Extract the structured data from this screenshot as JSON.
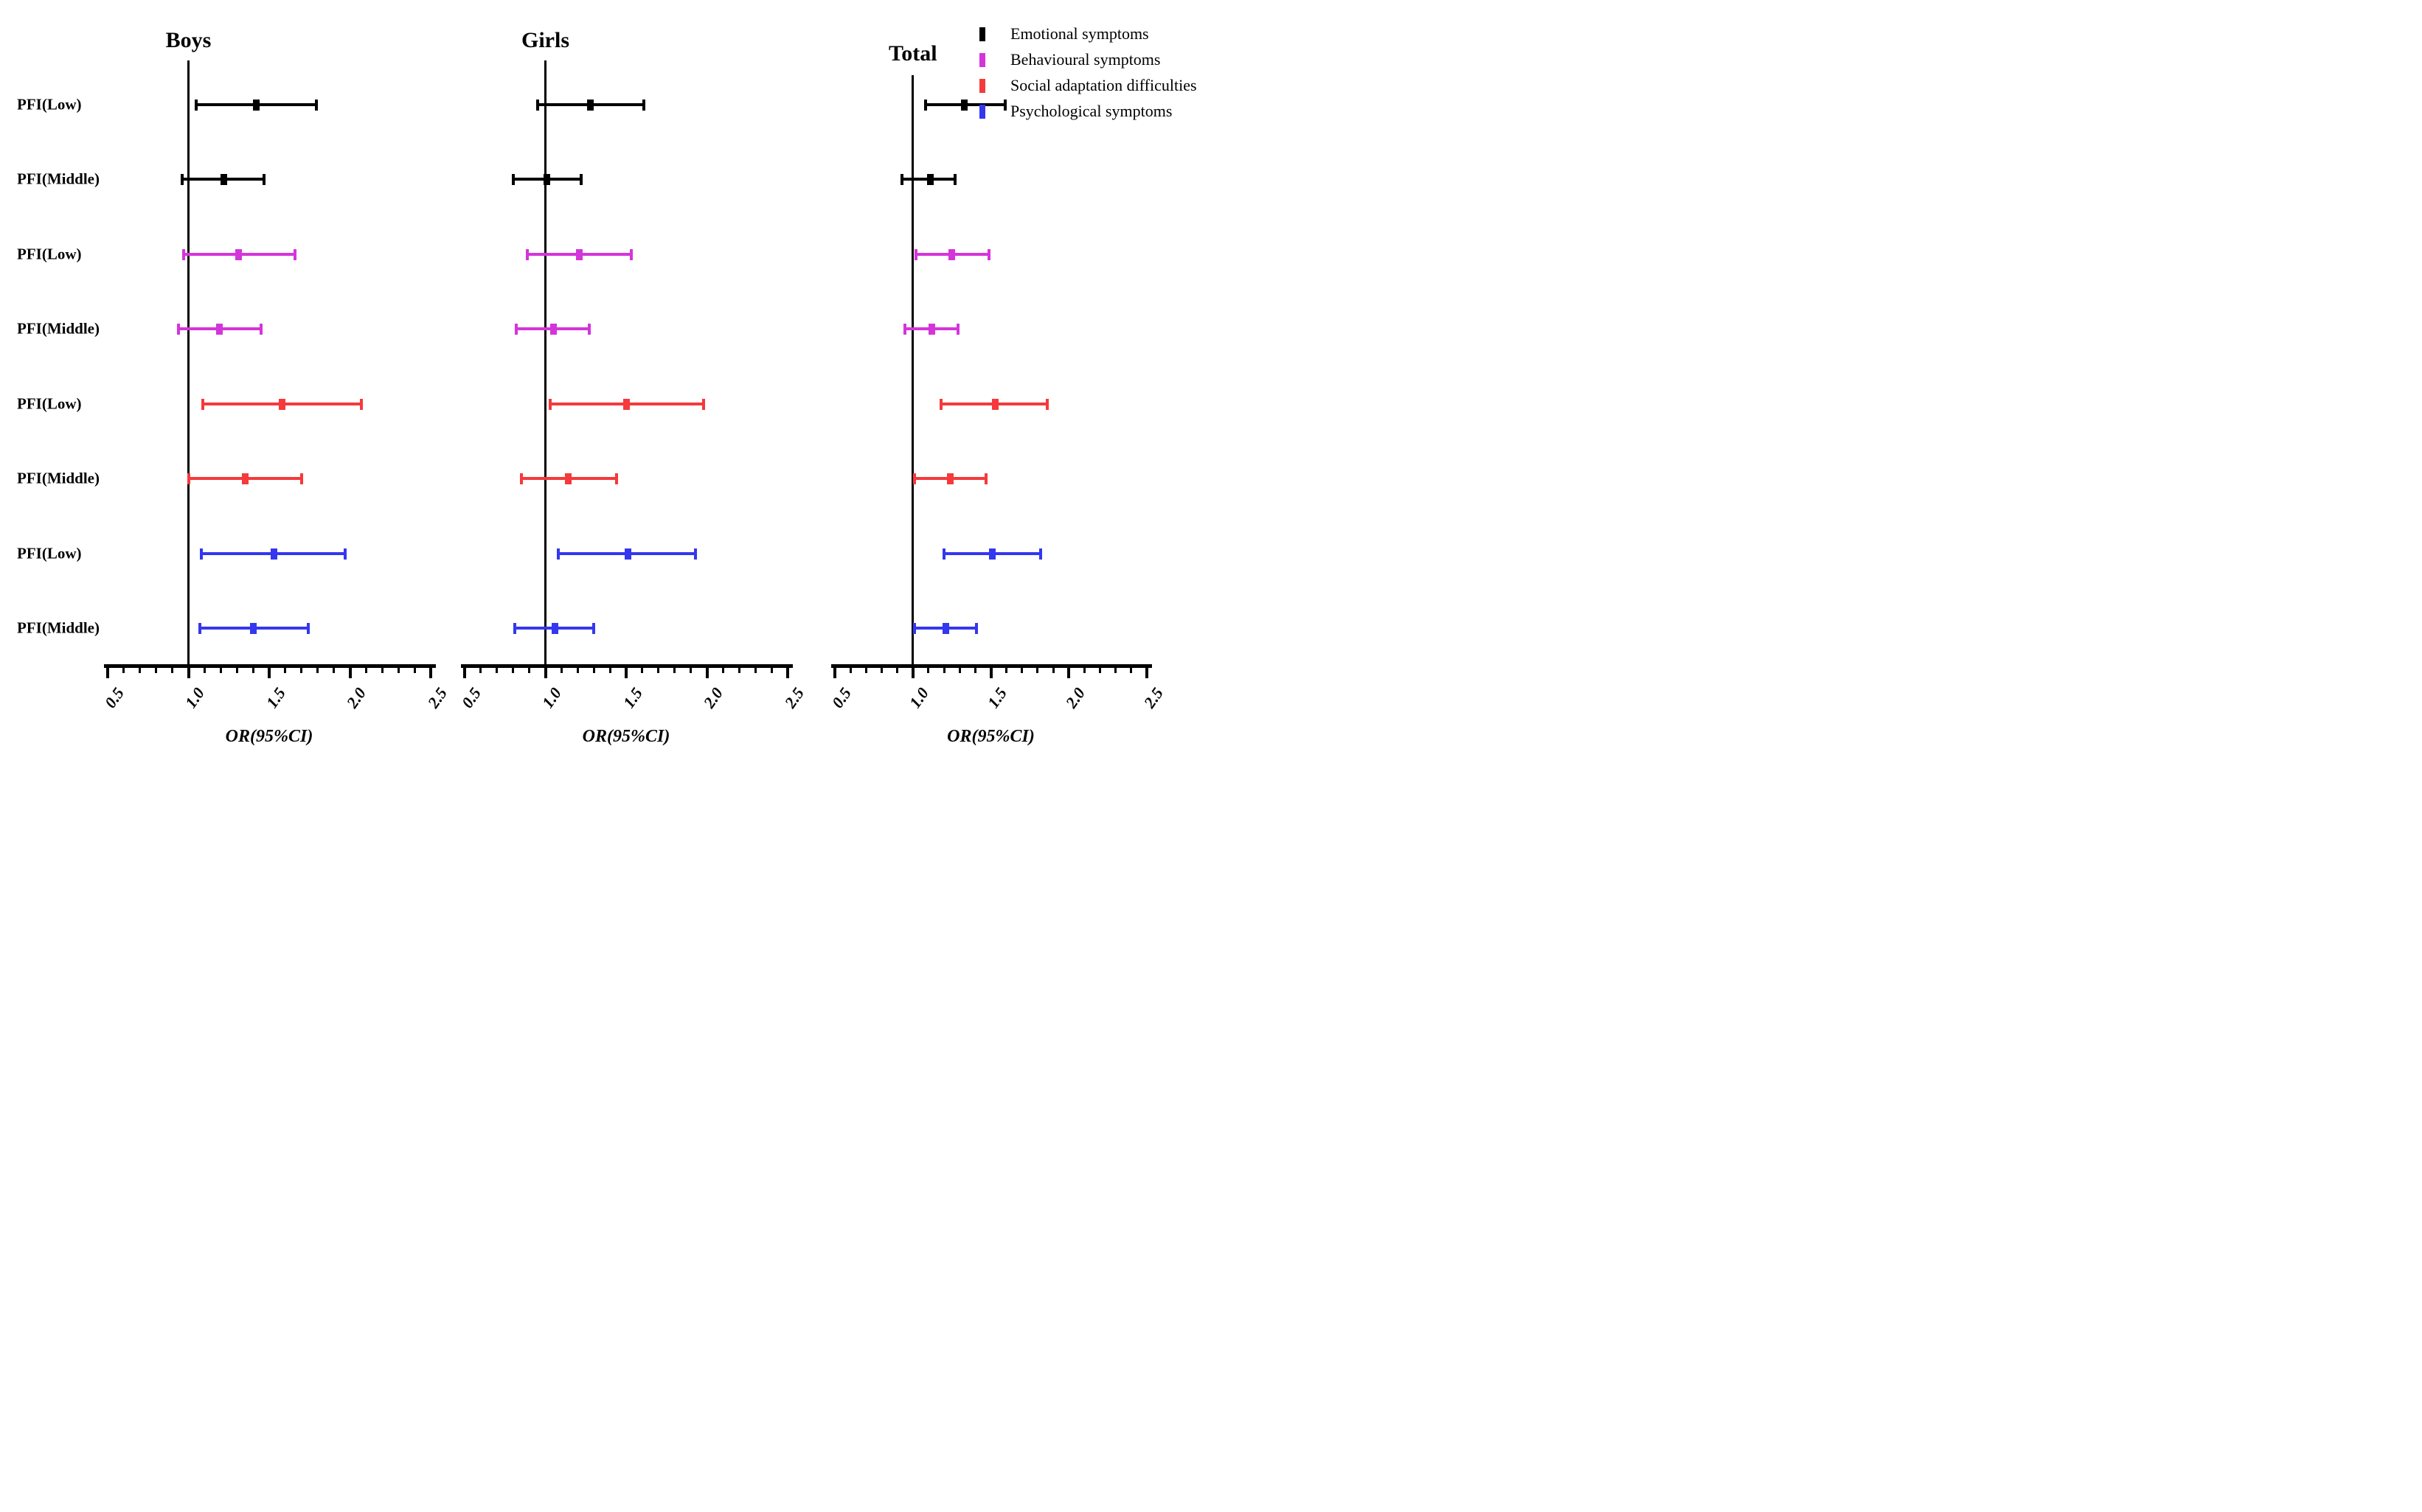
{
  "figure": {
    "x_axis_title": "OR(95%CI)"
  },
  "legend": {
    "position": "top-right",
    "items": [
      {
        "label": "Emotional symptoms",
        "color": "#000000"
      },
      {
        "label": "Behavioural symptoms",
        "color": "#D435DB"
      },
      {
        "label": "Social adaptation difficulties",
        "color": "#F5393C"
      },
      {
        "label": "Psychological symptoms",
        "color": "#3437EF"
      }
    ]
  },
  "chart_data": {
    "type": "forest",
    "xlabel": "OR(95%CI)",
    "xlim": [
      0.5,
      2.5
    ],
    "x_ticks": [
      0.5,
      1.0,
      1.5,
      2.0,
      2.5
    ],
    "x_tick_labels": [
      "0.5",
      "1.0",
      "1.5",
      "2.0",
      "2.5"
    ],
    "x_minor_step": 0.1,
    "ref_line": 1.0,
    "grid": false,
    "legend_position": "top-right",
    "panels": [
      {
        "title": "Boys",
        "rows": [
          {
            "label": "PFI(Low)",
            "series": "Emotional symptoms",
            "or": 1.42,
            "ci_low": 1.05,
            "ci_high": 1.79
          },
          {
            "label": "PFI(Middle)",
            "series": "Emotional symptoms",
            "or": 1.22,
            "ci_low": 0.96,
            "ci_high": 1.47
          },
          {
            "label": "PFI(Low)",
            "series": "Behavioural symptoms",
            "or": 1.31,
            "ci_low": 0.97,
            "ci_high": 1.66
          },
          {
            "label": "PFI(Middle)",
            "series": "Behavioural symptoms",
            "or": 1.19,
            "ci_low": 0.94,
            "ci_high": 1.45
          },
          {
            "label": "PFI(Low)",
            "series": "Social adaptation difficulties",
            "or": 1.58,
            "ci_low": 1.09,
            "ci_high": 2.07
          },
          {
            "label": "PFI(Middle)",
            "series": "Social adaptation difficulties",
            "or": 1.35,
            "ci_low": 1.0,
            "ci_high": 1.7
          },
          {
            "label": "PFI(Low)",
            "series": "Psychological symptoms",
            "or": 1.53,
            "ci_low": 1.08,
            "ci_high": 1.97
          },
          {
            "label": "PFI(Middle)",
            "series": "Psychological symptoms",
            "or": 1.4,
            "ci_low": 1.07,
            "ci_high": 1.74
          }
        ]
      },
      {
        "title": "Girls",
        "rows": [
          {
            "label": "PFI(Low)",
            "series": "Emotional symptoms",
            "or": 1.28,
            "ci_low": 0.95,
            "ci_high": 1.61
          },
          {
            "label": "PFI(Middle)",
            "series": "Emotional symptoms",
            "or": 1.01,
            "ci_low": 0.8,
            "ci_high": 1.22
          },
          {
            "label": "PFI(Low)",
            "series": "Behavioural symptoms",
            "or": 1.21,
            "ci_low": 0.89,
            "ci_high": 1.53
          },
          {
            "label": "PFI(Middle)",
            "series": "Behavioural symptoms",
            "or": 1.05,
            "ci_low": 0.82,
            "ci_high": 1.27
          },
          {
            "label": "PFI(Low)",
            "series": "Social adaptation difficulties",
            "or": 1.5,
            "ci_low": 1.03,
            "ci_high": 1.98
          },
          {
            "label": "PFI(Middle)",
            "series": "Social adaptation difficulties",
            "or": 1.14,
            "ci_low": 0.85,
            "ci_high": 1.44
          },
          {
            "label": "PFI(Low)",
            "series": "Psychological symptoms",
            "or": 1.51,
            "ci_low": 1.08,
            "ci_high": 1.93
          },
          {
            "label": "PFI(Middle)",
            "series": "Psychological symptoms",
            "or": 1.06,
            "ci_low": 0.81,
            "ci_high": 1.3
          }
        ]
      },
      {
        "title": "Total",
        "rows": [
          {
            "label": "PFI(Low)",
            "series": "Emotional symptoms",
            "or": 1.33,
            "ci_low": 1.08,
            "ci_high": 1.59
          },
          {
            "label": "PFI(Middle)",
            "series": "Emotional symptoms",
            "or": 1.11,
            "ci_low": 0.93,
            "ci_high": 1.27
          },
          {
            "label": "PFI(Low)",
            "series": "Behavioural symptoms",
            "or": 1.25,
            "ci_low": 1.02,
            "ci_high": 1.49
          },
          {
            "label": "PFI(Middle)",
            "series": "Behavioural symptoms",
            "or": 1.12,
            "ci_low": 0.95,
            "ci_high": 1.29
          },
          {
            "label": "PFI(Low)",
            "series": "Social adaptation difficulties",
            "or": 1.53,
            "ci_low": 1.18,
            "ci_high": 1.86
          },
          {
            "label": "PFI(Middle)",
            "series": "Social adaptation difficulties",
            "or": 1.24,
            "ci_low": 1.01,
            "ci_high": 1.47
          },
          {
            "label": "PFI(Low)",
            "series": "Psychological symptoms",
            "or": 1.51,
            "ci_low": 1.2,
            "ci_high": 1.82
          },
          {
            "label": "PFI(Middle)",
            "series": "Psychological symptoms",
            "or": 1.21,
            "ci_low": 1.01,
            "ci_high": 1.41
          }
        ]
      }
    ]
  }
}
